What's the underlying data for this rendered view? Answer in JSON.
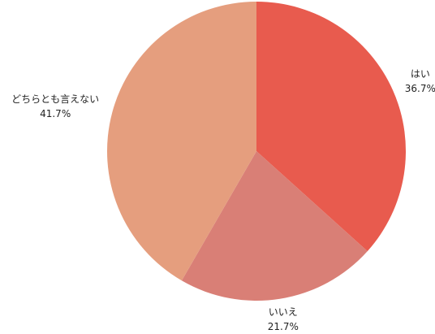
{
  "chart_data": {
    "type": "pie",
    "categories": [
      "はい",
      "いいえ",
      "どちらとも言えない"
    ],
    "values": [
      36.7,
      21.7,
      41.7
    ],
    "value_labels": [
      "36.7%",
      "21.7%",
      "41.7%"
    ],
    "colors": [
      "#e85b4e",
      "#d97f76",
      "#e59e7e"
    ]
  }
}
